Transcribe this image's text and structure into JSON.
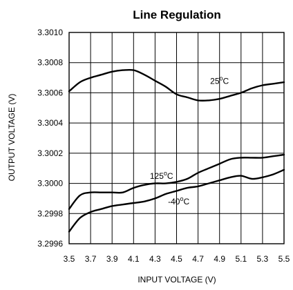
{
  "chart_data": {
    "type": "line",
    "title": "Line Regulation",
    "xlabel": "INPUT VOLTAGE (V)",
    "ylabel": "OUTPUT VOLTAGE (V)",
    "xlim": [
      3.5,
      5.5
    ],
    "ylim": [
      3.2996,
      3.301
    ],
    "grid": true,
    "x_ticks": [
      3.5,
      3.7,
      3.9,
      4.1,
      4.3,
      4.5,
      4.7,
      4.9,
      5.1,
      5.3,
      5.5
    ],
    "x_tick_labels": [
      "3.5",
      "3.7",
      "3.9",
      "4.1",
      "4.3",
      "4.5",
      "4.7",
      "4.9",
      "5.1",
      "5.3",
      "5.5"
    ],
    "y_ticks": [
      3.2996,
      3.2998,
      3.3,
      3.3002,
      3.3004,
      3.3006,
      3.3008,
      3.301
    ],
    "y_tick_labels": [
      "3.2996",
      "3.2998",
      "3.3000",
      "3.3002",
      "3.3004",
      "3.3006",
      "3.3008",
      "3.3010"
    ],
    "series": [
      {
        "label": "25°C",
        "points": [
          [
            3.5,
            3.30061
          ],
          [
            3.6,
            3.30067
          ],
          [
            3.7,
            3.3007
          ],
          [
            3.8,
            3.30072
          ],
          [
            3.9,
            3.30074
          ],
          [
            4.0,
            3.30075
          ],
          [
            4.1,
            3.30075
          ],
          [
            4.2,
            3.30072
          ],
          [
            4.3,
            3.30068
          ],
          [
            4.4,
            3.30064
          ],
          [
            4.5,
            3.30059
          ],
          [
            4.6,
            3.30057
          ],
          [
            4.7,
            3.30055
          ],
          [
            4.8,
            3.30055
          ],
          [
            4.9,
            3.30056
          ],
          [
            5.0,
            3.30058
          ],
          [
            5.1,
            3.3006
          ],
          [
            5.2,
            3.30063
          ],
          [
            5.3,
            3.30065
          ],
          [
            5.4,
            3.30066
          ],
          [
            5.5,
            3.30067
          ]
        ]
      },
      {
        "label": "125°C",
        "points": [
          [
            3.5,
            3.29983
          ],
          [
            3.6,
            3.29992
          ],
          [
            3.7,
            3.29994
          ],
          [
            3.8,
            3.29994
          ],
          [
            3.9,
            3.29994
          ],
          [
            4.0,
            3.29994
          ],
          [
            4.1,
            3.29997
          ],
          [
            4.2,
            3.29999
          ],
          [
            4.3,
            3.3
          ],
          [
            4.4,
            3.3
          ],
          [
            4.5,
            3.30001
          ],
          [
            4.6,
            3.30003
          ],
          [
            4.7,
            3.30007
          ],
          [
            4.8,
            3.3001
          ],
          [
            4.9,
            3.30013
          ],
          [
            5.0,
            3.30016
          ],
          [
            5.1,
            3.30017
          ],
          [
            5.2,
            3.30017
          ],
          [
            5.3,
            3.30017
          ],
          [
            5.4,
            3.30018
          ],
          [
            5.5,
            3.30019
          ]
        ]
      },
      {
        "label": "-40°C",
        "points": [
          [
            3.5,
            3.29968
          ],
          [
            3.6,
            3.29977
          ],
          [
            3.7,
            3.29981
          ],
          [
            3.8,
            3.29983
          ],
          [
            3.9,
            3.29985
          ],
          [
            4.0,
            3.29986
          ],
          [
            4.1,
            3.29987
          ],
          [
            4.2,
            3.29988
          ],
          [
            4.3,
            3.2999
          ],
          [
            4.4,
            3.29993
          ],
          [
            4.5,
            3.29995
          ],
          [
            4.6,
            3.29997
          ],
          [
            4.7,
            3.29998
          ],
          [
            4.8,
            3.3
          ],
          [
            4.9,
            3.30002
          ],
          [
            5.0,
            3.30004
          ],
          [
            5.1,
            3.30005
          ],
          [
            5.2,
            3.30003
          ],
          [
            5.3,
            3.30004
          ],
          [
            5.4,
            3.30006
          ],
          [
            5.5,
            3.30009
          ]
        ]
      }
    ],
    "annotations": [
      {
        "base": "25",
        "sup": "o",
        "unit": "C",
        "x": 4.9,
        "y": 3.30066
      },
      {
        "base": "125",
        "sup": "o",
        "unit": "C",
        "x": 4.36,
        "y": 3.30003
      },
      {
        "base": "-40",
        "sup": "o",
        "unit": "C",
        "x": 4.52,
        "y": 3.29986
      }
    ]
  }
}
